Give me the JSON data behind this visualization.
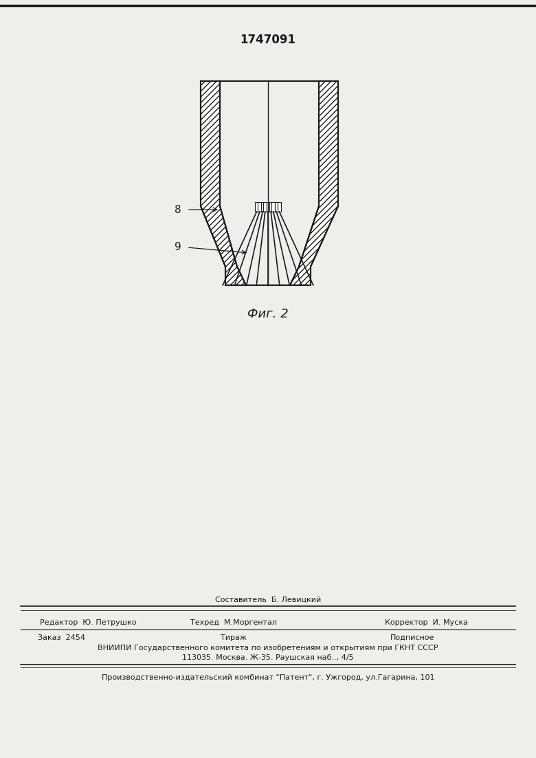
{
  "title": "1747091",
  "fig_label": "Фиг. 2",
  "label_8": "8",
  "label_9": "9",
  "bg_color": "#f0eeeb",
  "line_color": "#1a1a1a",
  "footer_line0": "Составитель  Б. Левицкий",
  "footer_line1": "Редактор  Ю. Петрушко",
  "footer_line2": "Техред  М.Моргентал",
  "footer_line3": "Корректор  И. Муска",
  "footer_line4": "Заказ  2454",
  "footer_line5": "Тираж",
  "footer_line6": "Подписное",
  "footer_line7": "ВНИИПИ Государственного комитета по изобретениям и открытиям при ГКНТ СССР",
  "footer_line8": "113035. Москва. Ж-35. Раушская наб.., 4/5",
  "footer_line9": "Производственно-издательский комбинат \"Патент\", г. Ужгород, ул.Гагарина, 101"
}
